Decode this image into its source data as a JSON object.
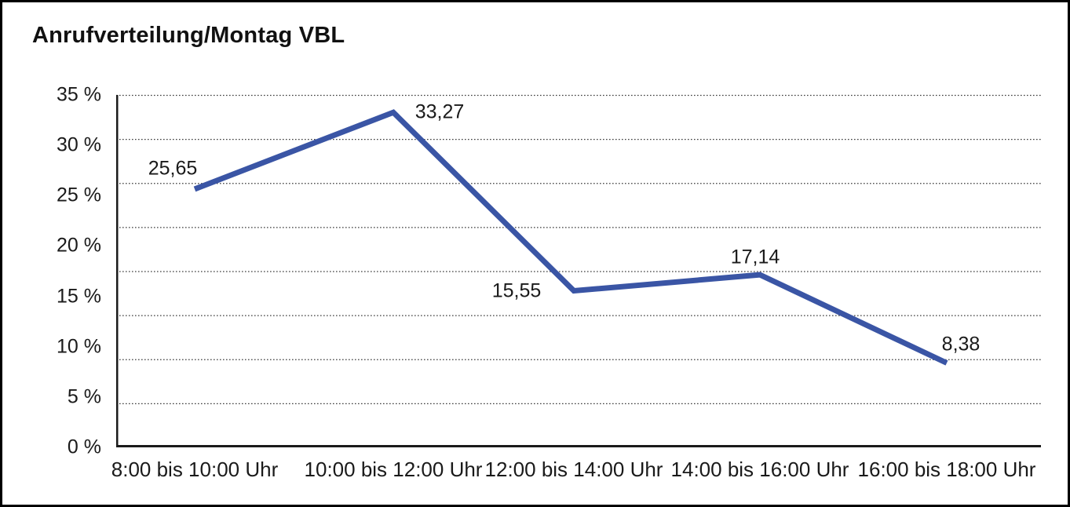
{
  "page": {
    "background_color": "#ffffff",
    "frame_border_color": "#000000"
  },
  "chart_data": {
    "type": "line",
    "title": "Anrufverteilung/Montag VBL",
    "categories": [
      "8:00 bis 10:00 Uhr",
      "10:00 bis 12:00 Uhr",
      "12:00 bis 14:00 Uhr",
      "14:00 bis 16:00 Uhr",
      "16:00 bis 18:00 Uhr"
    ],
    "values": [
      25.65,
      33.27,
      15.55,
      17.14,
      8.38
    ],
    "value_labels": [
      "25,65",
      "33,27",
      "15,55",
      "17,14",
      "8,38"
    ],
    "xlabel": "",
    "ylabel": "",
    "ylim": [
      0,
      35
    ],
    "yticks": [
      {
        "value": 35,
        "label": "35 %"
      },
      {
        "value": 30,
        "label": "30 %"
      },
      {
        "value": 25,
        "label": "25 %"
      },
      {
        "value": 20,
        "label": "20 %"
      },
      {
        "value": 15,
        "label": "15 %"
      },
      {
        "value": 10,
        "label": "10 %"
      },
      {
        "value": 5,
        "label": "5 %"
      },
      {
        "value": 0,
        "label": "0 %"
      }
    ],
    "grid": "horizontal dotted lines, 8 equal divisions of plot height",
    "gridline_divisions": 8,
    "legend": "none",
    "line_color": "#3A55A5",
    "line_width": 7,
    "axis_color": "#1a1a1a",
    "gridline_color": "#3c3c3c",
    "text_color": "#1a1a1a"
  }
}
